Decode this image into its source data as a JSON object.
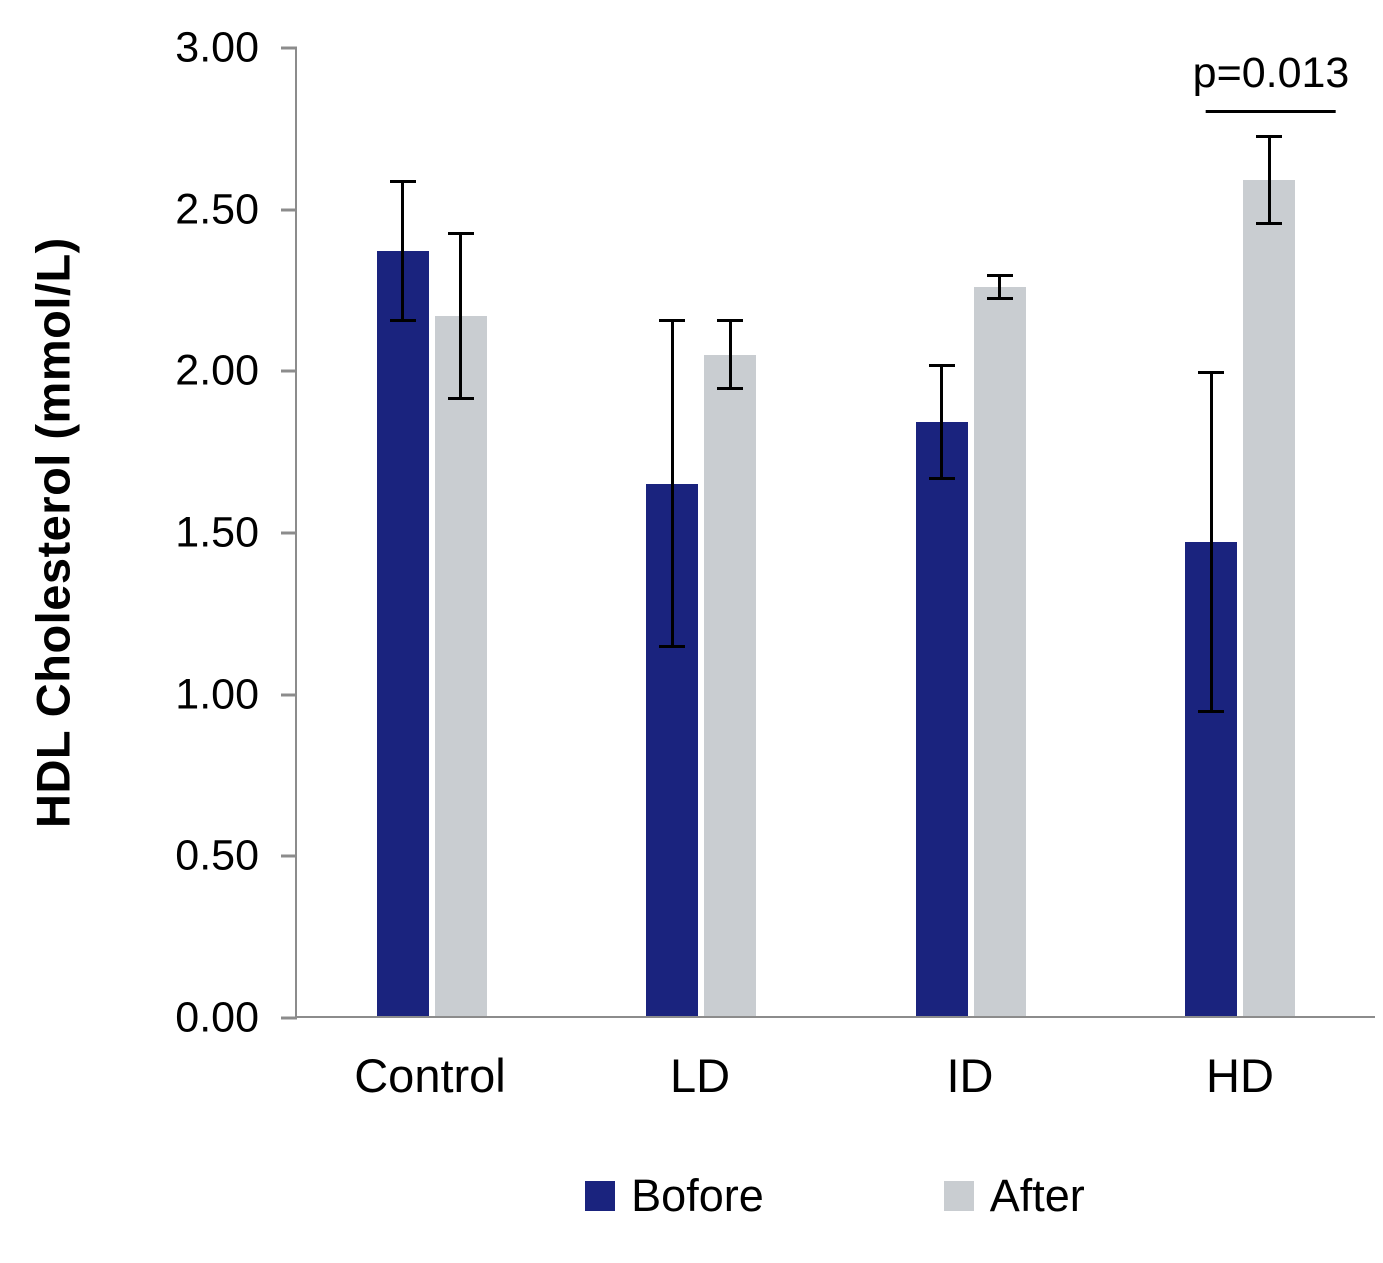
{
  "chart_data": {
    "type": "bar",
    "title": "",
    "xlabel": "",
    "ylabel": "HDL Cholesterol (mmol/L)",
    "ylim": [
      0,
      3
    ],
    "ytick_values": [
      0,
      0.5,
      1,
      1.5,
      2,
      2.5,
      3
    ],
    "ytick_labels": [
      "0.00",
      "0.50",
      "1.00",
      "1.50",
      "2.00",
      "2.50",
      "3.00"
    ],
    "grid": false,
    "legend_position": "bottom",
    "categories": [
      "Control",
      "LD",
      "ID",
      "HD"
    ],
    "series": [
      {
        "name": "Bofore",
        "color": "#1a237e",
        "values": [
          2.37,
          1.65,
          1.84,
          1.47
        ],
        "errors": [
          0.22,
          0.51,
          0.18,
          0.53
        ]
      },
      {
        "name": "After",
        "color": "#c9cdd1",
        "values": [
          2.17,
          2.05,
          2.26,
          2.59
        ],
        "errors": [
          0.26,
          0.11,
          0.04,
          0.14
        ]
      }
    ],
    "annotation": {
      "text": "p=0.013",
      "category": "HD",
      "series": "After",
      "line_y": 2.8
    }
  }
}
